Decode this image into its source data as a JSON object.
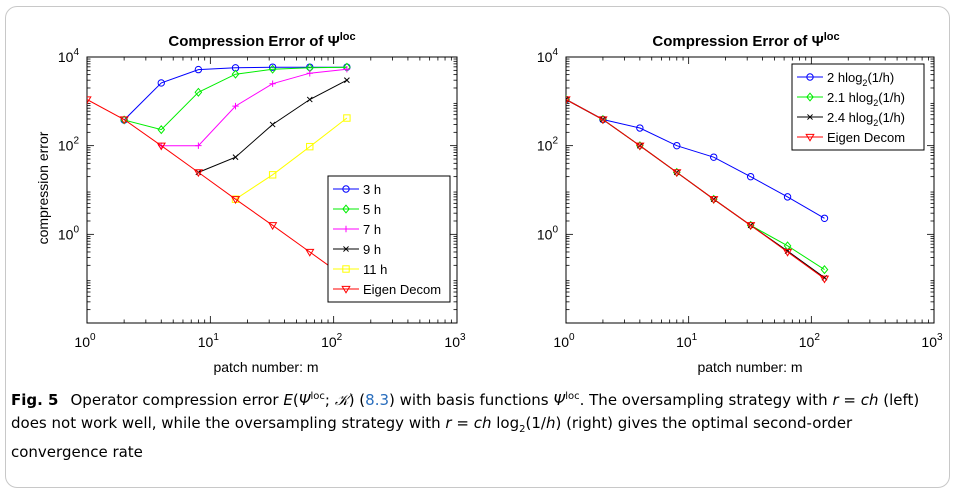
{
  "figure": {
    "caption_label": "Fig. 5",
    "caption_segments": [
      {
        "t": "Operator compression error ",
        "s": "n"
      },
      {
        "t": "E",
        "s": "i"
      },
      {
        "t": "(",
        "s": "n"
      },
      {
        "t": "Ψ",
        "s": "i"
      },
      {
        "t": "loc",
        "s": "sup"
      },
      {
        "t": "; ",
        "s": "n"
      },
      {
        "t": "𝒦",
        "s": "i"
      },
      {
        "t": ") (",
        "s": "n"
      },
      {
        "t": "8.3",
        "s": "link"
      },
      {
        "t": ") with basis functions ",
        "s": "n"
      },
      {
        "t": "Ψ",
        "s": "i"
      },
      {
        "t": "loc",
        "s": "sup"
      },
      {
        "t": ". The oversampling strategy with ",
        "s": "n"
      },
      {
        "t": "r",
        "s": "i"
      },
      {
        "t": " = ",
        "s": "n"
      },
      {
        "t": "ch",
        "s": "i"
      },
      {
        "t": " (left) does not work well, while the oversampling strategy with ",
        "s": "n"
      },
      {
        "t": "r",
        "s": "i"
      },
      {
        "t": " = ",
        "s": "n"
      },
      {
        "t": "ch",
        "s": "i"
      },
      {
        "t": " log",
        "s": "n"
      },
      {
        "t": "2",
        "s": "sub"
      },
      {
        "t": "(1/",
        "s": "n"
      },
      {
        "t": "h",
        "s": "i"
      },
      {
        "t": ") (right) gives the optimal second-order convergence rate",
        "s": "n"
      }
    ]
  },
  "chart_data": [
    {
      "type": "line",
      "title": "Compression Error of Ψ",
      "title_sup": "loc",
      "xlabel": "patch number: m",
      "ylabel": "compression error",
      "x_scale": "log",
      "y_scale": "log",
      "xlim": [
        1,
        1000
      ],
      "ylim": [
        0.01,
        10000
      ],
      "x_ticks": [
        {
          "v": 1,
          "base": "10",
          "exp": "0"
        },
        {
          "v": 10,
          "base": "10",
          "exp": "1"
        },
        {
          "v": 100,
          "base": "10",
          "exp": "2"
        },
        {
          "v": 1000,
          "base": "10",
          "exp": "3"
        }
      ],
      "y_ticks": [
        {
          "v": 1,
          "base": "10",
          "exp": "0"
        },
        {
          "v": 100,
          "base": "10",
          "exp": "2"
        },
        {
          "v": 10000,
          "base": "10",
          "exp": "4"
        }
      ],
      "grid": false,
      "legend_position": "center-right",
      "series": [
        {
          "name": "3 h",
          "color": "#0000ff",
          "marker": "circle",
          "x": [
            2,
            4,
            8,
            16,
            32,
            64,
            128
          ],
          "y": [
            380,
            2600,
            5200,
            5700,
            5900,
            5900,
            5900
          ]
        },
        {
          "name": "5 h",
          "color": "#00ee00",
          "marker": "diamond",
          "x": [
            2,
            4,
            8,
            16,
            32,
            64,
            128
          ],
          "y": [
            380,
            230,
            1600,
            4100,
            5300,
            5700,
            5900
          ]
        },
        {
          "name": "7 h",
          "color": "#ff00ff",
          "marker": "plus",
          "x": [
            4,
            8,
            16,
            32,
            64,
            128
          ],
          "y": [
            100,
            100,
            780,
            2500,
            4300,
            5300
          ]
        },
        {
          "name": "9 h",
          "color": "#000000",
          "marker": "x",
          "x": [
            8,
            16,
            32,
            64,
            128
          ],
          "y": [
            25,
            55,
            300,
            1100,
            3000
          ]
        },
        {
          "name": "11 h",
          "color": "#ffff00",
          "marker": "square",
          "x": [
            16,
            32,
            64,
            128
          ],
          "y": [
            6.2,
            22,
            95,
            420
          ]
        },
        {
          "name": "Eigen Decom",
          "color": "#ff0000",
          "marker": "triangle-down",
          "x": [
            1,
            2,
            4,
            8,
            16,
            32,
            64,
            128
          ],
          "y": [
            1100,
            390,
            100,
            25,
            6.2,
            1.6,
            0.4,
            0.1
          ]
        }
      ]
    },
    {
      "type": "line",
      "title": "Compression Error of Ψ",
      "title_sup": "loc",
      "xlabel": "patch number: m",
      "ylabel": "",
      "x_scale": "log",
      "y_scale": "log",
      "xlim": [
        1,
        1000
      ],
      "ylim": [
        0.01,
        10000
      ],
      "x_ticks": [
        {
          "v": 1,
          "base": "10",
          "exp": "0"
        },
        {
          "v": 10,
          "base": "10",
          "exp": "1"
        },
        {
          "v": 100,
          "base": "10",
          "exp": "2"
        },
        {
          "v": 1000,
          "base": "10",
          "exp": "3"
        }
      ],
      "y_ticks": [
        {
          "v": 1,
          "base": "10",
          "exp": "0"
        },
        {
          "v": 100,
          "base": "10",
          "exp": "2"
        },
        {
          "v": 10000,
          "base": "10",
          "exp": "4"
        }
      ],
      "grid": false,
      "legend_position": "top-right",
      "series": [
        {
          "name": "2 hlog",
          "name_sub": "2",
          "name_tail": "(1/h)",
          "color": "#0000ff",
          "marker": "circle",
          "x": [
            1,
            2,
            4,
            8,
            16,
            32,
            64,
            128
          ],
          "y": [
            1100,
            390,
            250,
            100,
            55,
            20,
            7,
            2.3
          ]
        },
        {
          "name": "2.1 hlog",
          "name_sub": "2",
          "name_tail": "(1/h)",
          "color": "#00ee00",
          "marker": "diamond",
          "x": [
            1,
            2,
            4,
            8,
            16,
            32,
            64,
            128
          ],
          "y": [
            1100,
            390,
            100,
            25,
            6.2,
            1.6,
            0.55,
            0.16
          ]
        },
        {
          "name": "2.4 hlog",
          "name_sub": "2",
          "name_tail": "(1/h)",
          "color": "#000000",
          "marker": "x",
          "x": [
            1,
            2,
            4,
            8,
            16,
            32,
            64,
            128
          ],
          "y": [
            1100,
            390,
            100,
            25,
            6.2,
            1.6,
            0.42,
            0.105
          ]
        },
        {
          "name": "Eigen Decom",
          "color": "#ff0000",
          "marker": "triangle-down",
          "x": [
            1,
            2,
            4,
            8,
            16,
            32,
            64,
            128
          ],
          "y": [
            1100,
            390,
            100,
            25,
            6.2,
            1.6,
            0.4,
            0.1
          ]
        }
      ]
    }
  ]
}
